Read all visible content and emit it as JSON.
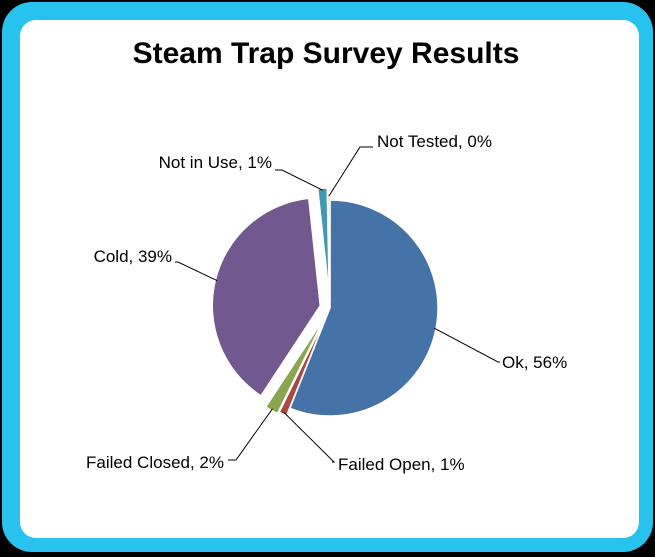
{
  "chart_data": {
    "type": "pie",
    "title": "Steam Trap Survey Results",
    "slices": [
      {
        "name": "Ok",
        "percent": 56,
        "value": 56,
        "color": "#4572a7",
        "label": "Ok, 56%"
      },
      {
        "name": "Failed Open",
        "percent": 1,
        "value": 1.2,
        "color": "#aa4643",
        "label": "Failed Open, 1%"
      },
      {
        "name": "Failed Closed",
        "percent": 2,
        "value": 2.0,
        "color": "#89a54e",
        "label": "Failed Closed, 2%"
      },
      {
        "name": "Cold",
        "percent": 39,
        "value": 39,
        "color": "#71588f",
        "label": "Cold, 39%"
      },
      {
        "name": "Not in Use",
        "percent": 1,
        "value": 1.4,
        "color": "#4198af",
        "label": "Not in Use, 1%"
      },
      {
        "name": "Not Tested",
        "percent": 0,
        "value": 0.3,
        "color": "#db843d",
        "label": "Not Tested, 0%"
      }
    ],
    "legend": "none"
  }
}
